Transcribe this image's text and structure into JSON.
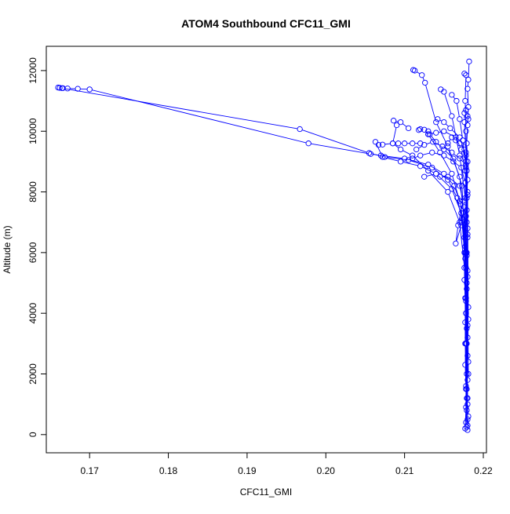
{
  "chart_data": {
    "type": "line",
    "title": "ATOM4 Southbound CFC11_GMI",
    "xlabel": "CFC11_GMI",
    "ylabel": "Altitude (m)",
    "xlim": [
      0.1645,
      0.2204
    ],
    "ylim": [
      -600,
      12800
    ],
    "xticks": [
      0.17,
      0.18,
      0.19,
      0.2,
      0.21,
      0.22
    ],
    "xtick_labels": [
      "0.17",
      "0.18",
      "0.19",
      "0.20",
      "0.21",
      "0.22"
    ],
    "yticks": [
      0,
      2000,
      4000,
      6000,
      8000,
      10000,
      12000
    ],
    "ytick_labels": [
      "0",
      "2000",
      "4000",
      "6000",
      "8000",
      "10000",
      "12000"
    ],
    "marker": "open-circle",
    "grid": false,
    "color": "#0000ff",
    "series": [
      {
        "points": [
          [
            0.218,
            150
          ],
          [
            0.2181,
            600
          ],
          [
            0.2179,
            1200
          ],
          [
            0.218,
            1800
          ],
          [
            0.2181,
            2400
          ],
          [
            0.2179,
            3000
          ],
          [
            0.218,
            3600
          ],
          [
            0.2181,
            4200
          ],
          [
            0.2179,
            4800
          ],
          [
            0.218,
            5400
          ],
          [
            0.2179,
            6000
          ],
          [
            0.218,
            6600
          ],
          [
            0.2178,
            7200
          ],
          [
            0.2179,
            7800
          ],
          [
            0.218,
            8400
          ],
          [
            0.218,
            9000
          ],
          [
            0.2179,
            9600
          ],
          [
            0.218,
            10200
          ],
          [
            0.2181,
            10800
          ],
          [
            0.218,
            11400
          ],
          [
            0.2181,
            11700
          ],
          [
            0.2182,
            12300
          ]
        ]
      },
      {
        "points": [
          [
            0.2177,
            200
          ],
          [
            0.2178,
            900
          ],
          [
            0.2178,
            1600
          ],
          [
            0.2177,
            2300
          ],
          [
            0.2178,
            3000
          ],
          [
            0.2177,
            3700
          ],
          [
            0.2178,
            4400
          ],
          [
            0.2176,
            5100
          ],
          [
            0.2177,
            5800
          ],
          [
            0.2176,
            6500
          ],
          [
            0.2174,
            7100
          ],
          [
            0.217,
            7700
          ],
          [
            0.2163,
            8200
          ],
          [
            0.215,
            8600
          ],
          [
            0.213,
            8900
          ],
          [
            0.21,
            9100
          ],
          [
            0.207,
            9200
          ],
          [
            0.2057,
            9250
          ],
          [
            0.1978,
            9600
          ],
          [
            0.17,
            11380
          ],
          [
            0.1685,
            11400
          ],
          [
            0.1672,
            11410
          ],
          [
            0.1666,
            11420
          ],
          [
            0.1662,
            11430
          ],
          [
            0.166,
            11440
          ]
        ]
      },
      {
        "points": [
          [
            0.2179,
            250
          ],
          [
            0.2178,
            1500
          ],
          [
            0.2177,
            3000
          ],
          [
            0.2177,
            4500
          ],
          [
            0.2176,
            6000
          ],
          [
            0.2173,
            7000
          ],
          [
            0.2167,
            7800
          ],
          [
            0.2155,
            8400
          ],
          [
            0.2135,
            8800
          ],
          [
            0.2105,
            9050
          ],
          [
            0.2075,
            9150
          ],
          [
            0.2055,
            9280
          ],
          [
            0.1967,
            10070
          ],
          [
            0.1665,
            11420
          ]
        ]
      },
      {
        "points": [
          [
            0.218,
            300
          ],
          [
            0.2179,
            2000
          ],
          [
            0.2178,
            4000
          ],
          [
            0.2177,
            6000
          ],
          [
            0.2172,
            7300
          ],
          [
            0.216,
            8100
          ],
          [
            0.214,
            8600
          ],
          [
            0.212,
            8850
          ],
          [
            0.2095,
            9000
          ],
          [
            0.2072,
            9150
          ],
          [
            0.2063,
            9650
          ],
          [
            0.2067,
            9550
          ],
          [
            0.2072,
            9560
          ],
          [
            0.2085,
            9600
          ],
          [
            0.2092,
            9600
          ],
          [
            0.21,
            9600
          ],
          [
            0.211,
            9600
          ],
          [
            0.212,
            9600
          ]
        ]
      },
      {
        "points": [
          [
            0.2178,
            400
          ],
          [
            0.2178,
            3000
          ],
          [
            0.2176,
            5500
          ],
          [
            0.217,
            7000
          ],
          [
            0.2155,
            8000
          ],
          [
            0.213,
            8700
          ],
          [
            0.211,
            9200
          ],
          [
            0.2095,
            9400
          ],
          [
            0.2085,
            9600
          ],
          [
            0.209,
            10200
          ],
          [
            0.2086,
            10350
          ],
          [
            0.2095,
            10300
          ],
          [
            0.2105,
            10100
          ]
        ]
      },
      {
        "points": [
          [
            0.218,
            500
          ],
          [
            0.2179,
            3500
          ],
          [
            0.2177,
            6200
          ],
          [
            0.2171,
            7600
          ],
          [
            0.216,
            8600
          ],
          [
            0.2145,
            9300
          ],
          [
            0.213,
            9900
          ],
          [
            0.2125,
            10050
          ],
          [
            0.212,
            10070
          ],
          [
            0.2118,
            10040
          ]
        ]
      },
      {
        "points": [
          [
            0.2179,
            800
          ],
          [
            0.2178,
            4000
          ],
          [
            0.2176,
            7000
          ],
          [
            0.217,
            8500
          ],
          [
            0.2155,
            9500
          ],
          [
            0.214,
            10300
          ],
          [
            0.2126,
            11600
          ],
          [
            0.2122,
            11850
          ],
          [
            0.2113,
            12000
          ],
          [
            0.2111,
            12020
          ]
        ]
      },
      {
        "points": [
          [
            0.218,
            1000
          ],
          [
            0.2179,
            5000
          ],
          [
            0.2177,
            7800
          ],
          [
            0.217,
            9200
          ],
          [
            0.216,
            10500
          ],
          [
            0.215,
            11300
          ],
          [
            0.2146,
            11380
          ]
        ]
      },
      {
        "points": [
          [
            0.218,
            1200
          ],
          [
            0.2178,
            5500
          ],
          [
            0.2173,
            8200
          ],
          [
            0.2162,
            9100
          ],
          [
            0.215,
            9400
          ],
          [
            0.214,
            9650
          ],
          [
            0.2132,
            9900
          ],
          [
            0.213,
            10000
          ]
        ]
      },
      {
        "points": [
          [
            0.2179,
            1500
          ],
          [
            0.2178,
            6000
          ],
          [
            0.2176,
            7500
          ],
          [
            0.2172,
            6900
          ],
          [
            0.2165,
            6300
          ],
          [
            0.2168,
            6900
          ],
          [
            0.2174,
            7700
          ],
          [
            0.217,
            8200
          ],
          [
            0.2155,
            8500
          ],
          [
            0.2145,
            8500
          ],
          [
            0.214,
            8600
          ],
          [
            0.2125,
            8500
          ]
        ]
      },
      {
        "points": [
          [
            0.2181,
            2000
          ],
          [
            0.218,
            6500
          ],
          [
            0.218,
            8000
          ],
          [
            0.2178,
            9000
          ],
          [
            0.2176,
            9400
          ],
          [
            0.217,
            9600
          ],
          [
            0.2165,
            9700
          ],
          [
            0.216,
            9800
          ],
          [
            0.2155,
            9600
          ]
        ]
      },
      {
        "points": [
          [
            0.218,
            2600
          ],
          [
            0.2179,
            7000
          ],
          [
            0.2178,
            8800
          ],
          [
            0.2174,
            9700
          ],
          [
            0.217,
            10400
          ],
          [
            0.2166,
            11000
          ],
          [
            0.216,
            11200
          ]
        ]
      },
      {
        "points": [
          [
            0.218,
            3200
          ],
          [
            0.2179,
            7400
          ],
          [
            0.2177,
            8700
          ],
          [
            0.2172,
            9400
          ],
          [
            0.2165,
            9800
          ],
          [
            0.215,
            10000
          ],
          [
            0.214,
            9950
          ],
          [
            0.213,
            9900
          ]
        ]
      },
      {
        "points": [
          [
            0.2181,
            3800
          ],
          [
            0.218,
            7900
          ],
          [
            0.2178,
            9300
          ],
          [
            0.2176,
            10300
          ],
          [
            0.2176,
            10600
          ],
          [
            0.2178,
            10700
          ],
          [
            0.218,
            10500
          ],
          [
            0.2181,
            10400
          ]
        ]
      },
      {
        "points": [
          [
            0.2178,
            4500
          ],
          [
            0.2177,
            8300
          ],
          [
            0.2172,
            8800
          ],
          [
            0.2162,
            9000
          ],
          [
            0.215,
            9200
          ],
          [
            0.2135,
            9300
          ],
          [
            0.212,
            9200
          ],
          [
            0.211,
            9100
          ]
        ]
      },
      {
        "points": [
          [
            0.218,
            5200
          ],
          [
            0.2179,
            8700
          ],
          [
            0.2178,
            10000
          ],
          [
            0.2177,
            11000
          ],
          [
            0.2178,
            11850
          ],
          [
            0.2176,
            11900
          ]
        ]
      },
      {
        "points": [
          [
            0.2179,
            5900
          ],
          [
            0.2178,
            8900
          ],
          [
            0.217,
            9100
          ],
          [
            0.216,
            9300
          ],
          [
            0.2148,
            9500
          ],
          [
            0.2136,
            9650
          ],
          [
            0.2125,
            9550
          ],
          [
            0.2115,
            9400
          ]
        ]
      },
      {
        "points": [
          [
            0.218,
            6800
          ],
          [
            0.2178,
            9200
          ],
          [
            0.217,
            9800
          ],
          [
            0.2158,
            10100
          ],
          [
            0.215,
            10300
          ],
          [
            0.2142,
            10400
          ]
        ]
      }
    ]
  }
}
